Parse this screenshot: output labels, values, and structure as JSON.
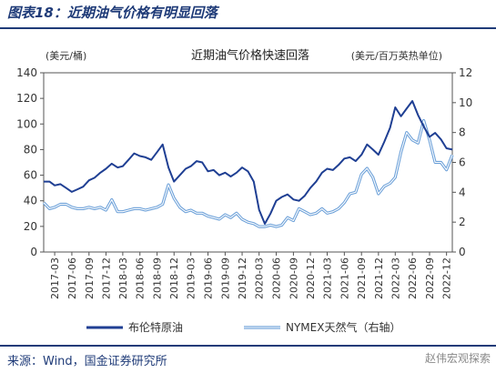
{
  "figure": {
    "label": "图表18：近期油气价格有明显回落",
    "source": "来源：Wind，国金证券研究所",
    "watermark": "赵伟宏观探索"
  },
  "colors": {
    "brent": "#1f3f93",
    "nymex": "#6a9fd8",
    "nymex_outline": "#ffffff",
    "text": "#333333",
    "title": "#1f3b78"
  },
  "chart_data": {
    "type": "line",
    "title": "近期油气价格快速回落",
    "ylabel": "(美元/桶)",
    "y2label": "(美元/百万英热单位)",
    "ylim": [
      0,
      140
    ],
    "y2lim": [
      0,
      12
    ],
    "yticks": [
      0,
      20,
      40,
      60,
      80,
      100,
      120,
      140
    ],
    "y2ticks": [
      0,
      2,
      4,
      6,
      8,
      10,
      12
    ],
    "xticks": [
      "2017-03",
      "2017-06",
      "2017-09",
      "2017-12",
      "2018-03",
      "2018-06",
      "2018-09",
      "2018-12",
      "2019-03",
      "2019-06",
      "2019-09",
      "2019-12",
      "2020-03",
      "2020-06",
      "2020-09",
      "2020-12",
      "2021-03",
      "2021-06",
      "2021-09",
      "2021-12",
      "2022-03",
      "2022-06",
      "2022-09",
      "2022-12"
    ],
    "legend_position": "bottom",
    "grid": false,
    "series": [
      {
        "name": "布伦特原油",
        "axis": "left",
        "x": [
          "2017-01",
          "2017-02",
          "2017-03",
          "2017-04",
          "2017-05",
          "2017-06",
          "2017-07",
          "2017-08",
          "2017-09",
          "2017-10",
          "2017-11",
          "2017-12",
          "2018-01",
          "2018-02",
          "2018-03",
          "2018-04",
          "2018-05",
          "2018-06",
          "2018-07",
          "2018-08",
          "2018-09",
          "2018-10",
          "2018-11",
          "2018-12",
          "2019-01",
          "2019-02",
          "2019-03",
          "2019-04",
          "2019-05",
          "2019-06",
          "2019-07",
          "2019-08",
          "2019-09",
          "2019-10",
          "2019-11",
          "2019-12",
          "2020-01",
          "2020-02",
          "2020-03",
          "2020-04",
          "2020-05",
          "2020-06",
          "2020-07",
          "2020-08",
          "2020-09",
          "2020-10",
          "2020-11",
          "2020-12",
          "2021-01",
          "2021-02",
          "2021-03",
          "2021-04",
          "2021-05",
          "2021-06",
          "2021-07",
          "2021-08",
          "2021-09",
          "2021-10",
          "2021-11",
          "2021-12",
          "2022-01",
          "2022-02",
          "2022-03",
          "2022-04",
          "2022-05",
          "2022-06",
          "2022-07",
          "2022-08",
          "2022-09",
          "2022-10",
          "2022-11",
          "2022-12",
          "2023-01"
        ],
        "values": [
          55,
          55,
          52,
          53,
          50,
          47,
          49,
          51,
          56,
          58,
          62,
          65,
          69,
          66,
          67,
          72,
          77,
          75,
          74,
          72,
          78,
          84,
          66,
          55,
          60,
          65,
          67,
          71,
          70,
          63,
          64,
          60,
          62,
          59,
          62,
          66,
          63,
          55,
          33,
          22,
          30,
          40,
          43,
          45,
          41,
          40,
          44,
          50,
          55,
          62,
          65,
          64,
          68,
          73,
          74,
          71,
          76,
          84,
          80,
          76,
          86,
          97,
          113,
          106,
          112,
          118,
          107,
          98,
          90,
          93,
          88,
          81,
          80
        ]
      },
      {
        "name": "NYMEX天然气（右轴）",
        "axis": "right",
        "x": [
          "2017-01",
          "2017-02",
          "2017-03",
          "2017-04",
          "2017-05",
          "2017-06",
          "2017-07",
          "2017-08",
          "2017-09",
          "2017-10",
          "2017-11",
          "2017-12",
          "2018-01",
          "2018-02",
          "2018-03",
          "2018-04",
          "2018-05",
          "2018-06",
          "2018-07",
          "2018-08",
          "2018-09",
          "2018-10",
          "2018-11",
          "2018-12",
          "2019-01",
          "2019-02",
          "2019-03",
          "2019-04",
          "2019-05",
          "2019-06",
          "2019-07",
          "2019-08",
          "2019-09",
          "2019-10",
          "2019-11",
          "2019-12",
          "2020-01",
          "2020-02",
          "2020-03",
          "2020-04",
          "2020-05",
          "2020-06",
          "2020-07",
          "2020-08",
          "2020-09",
          "2020-10",
          "2020-11",
          "2020-12",
          "2021-01",
          "2021-02",
          "2021-03",
          "2021-04",
          "2021-05",
          "2021-06",
          "2021-07",
          "2021-08",
          "2021-09",
          "2021-10",
          "2021-11",
          "2021-12",
          "2022-01",
          "2022-02",
          "2022-03",
          "2022-04",
          "2022-05",
          "2022-06",
          "2022-07",
          "2022-08",
          "2022-09",
          "2022-10",
          "2022-11",
          "2022-12",
          "2023-01"
        ],
        "values": [
          3.3,
          2.9,
          3.0,
          3.2,
          3.2,
          3.0,
          2.9,
          2.9,
          3.0,
          2.9,
          3.0,
          2.8,
          3.5,
          2.7,
          2.7,
          2.8,
          2.9,
          2.9,
          2.8,
          2.9,
          3.0,
          3.2,
          4.5,
          3.6,
          3.0,
          2.7,
          2.8,
          2.6,
          2.6,
          2.4,
          2.3,
          2.2,
          2.5,
          2.3,
          2.6,
          2.2,
          2.0,
          1.9,
          1.7,
          1.7,
          1.8,
          1.7,
          1.8,
          2.3,
          2.1,
          2.9,
          2.7,
          2.5,
          2.6,
          2.9,
          2.6,
          2.7,
          2.9,
          3.3,
          3.9,
          4.0,
          5.2,
          5.6,
          5.0,
          3.9,
          4.4,
          4.6,
          5.0,
          6.7,
          8.0,
          7.5,
          7.3,
          8.8,
          7.5,
          6.0,
          6.0,
          5.5,
          6.5
        ]
      }
    ]
  }
}
